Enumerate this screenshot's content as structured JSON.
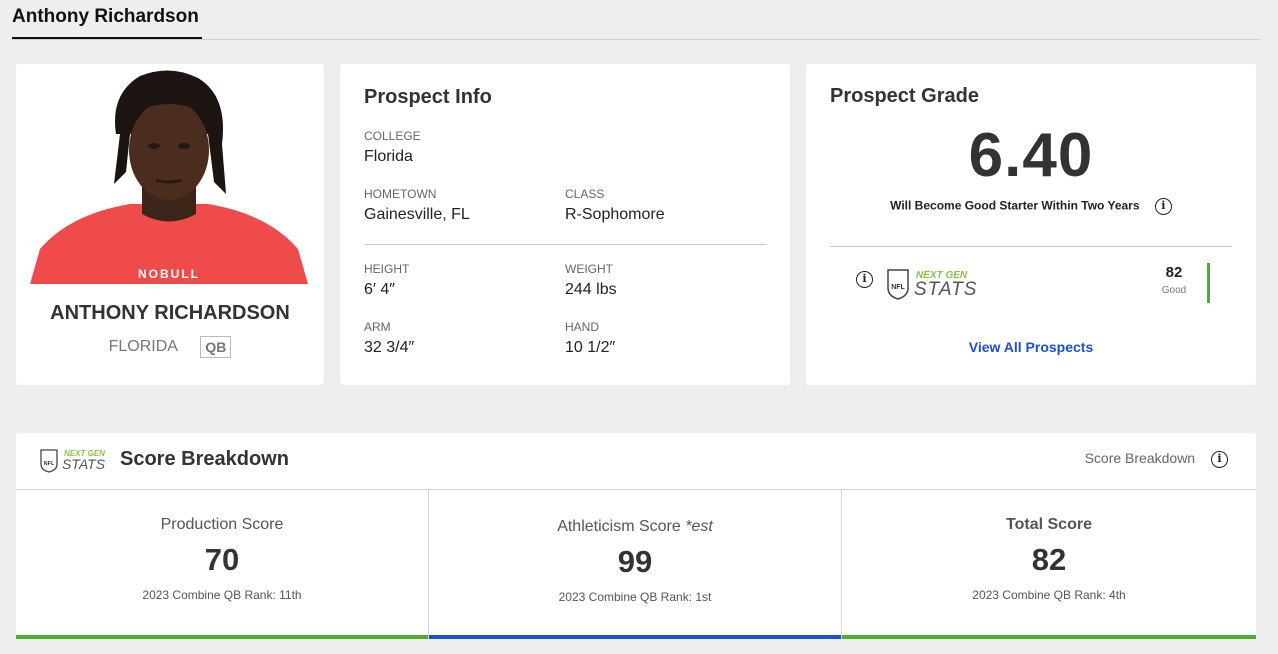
{
  "page": {
    "title": "Anthony Richardson"
  },
  "player": {
    "name": "ANTHONY RICHARDSON",
    "school": "FLORIDA",
    "position": "QB",
    "jersey_text": "NOBULL"
  },
  "prospect_info": {
    "heading": "Prospect Info",
    "college": {
      "label": "COLLEGE",
      "value": "Florida"
    },
    "hometown": {
      "label": "HOMETOWN",
      "value": "Gainesville, FL"
    },
    "class": {
      "label": "CLASS",
      "value": "R-Sophomore"
    },
    "height": {
      "label": "HEIGHT",
      "value": "6′ 4″"
    },
    "weight": {
      "label": "WEIGHT",
      "value": "244 lbs"
    },
    "arm": {
      "label": "ARM",
      "value": "32 3/4″"
    },
    "hand": {
      "label": "HAND",
      "value": "10 1/2″"
    }
  },
  "prospect_grade": {
    "heading": "Prospect Grade",
    "value": "6.40",
    "description": "Will Become Good Starter Within Two Years",
    "ngs_logo": {
      "top": "NEXT GEN",
      "bottom": "STATS",
      "shield": "NFL"
    },
    "ngs_score": "82",
    "ngs_rating": "Good",
    "ngs_bar_color": "#4caf2a",
    "view_all_label": "View All Prospects"
  },
  "breakdown": {
    "title": "Score Breakdown",
    "right_label": "Score Breakdown",
    "columns": {
      "production": {
        "title": "Production Score",
        "value": "70",
        "rank": "2023 Combine QB Rank: 11th",
        "color": "#4caf2a"
      },
      "athleticism": {
        "title": "Athleticism Score",
        "title_suffix": "*est",
        "value": "99",
        "rank": "2023 Combine QB Rank: 1st",
        "color": "#1a4fd6"
      },
      "total": {
        "title": "Total Score",
        "value": "82",
        "rank": "2023 Combine QB Rank: 4th",
        "color": "#4caf2a"
      }
    }
  },
  "icons": {
    "info": "info-circle-icon",
    "ngs": "next-gen-stats-logo"
  },
  "colors": {
    "link": "#1a4fd6",
    "accent_green": "#8bc34a",
    "accent_blue": "#1a4fd6"
  }
}
